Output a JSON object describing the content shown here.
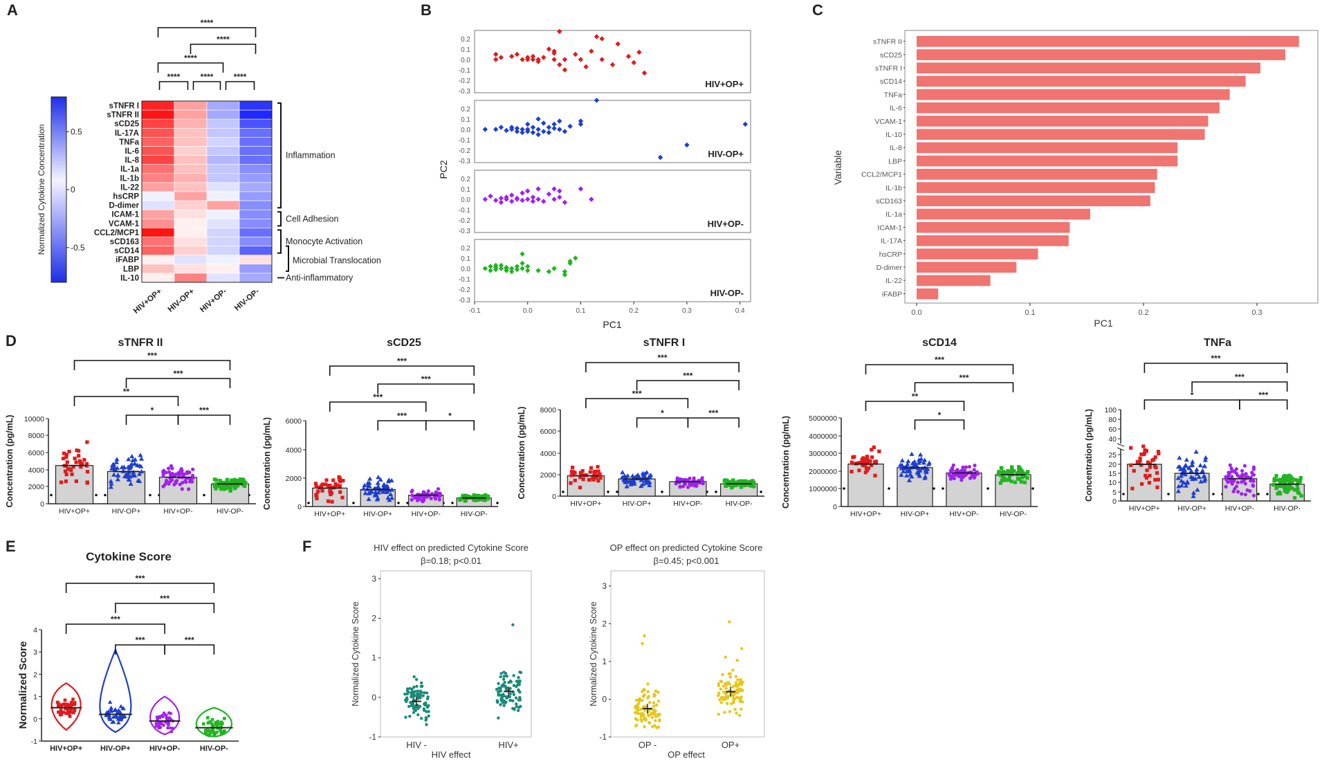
{
  "colors": {
    "hiv_pos_op_pos": "#e31a1c",
    "hiv_neg_op_pos": "#1f3fd0",
    "hiv_pos_op_neg": "#a020f0",
    "hiv_neg_op_neg": "#22b422",
    "bar": "#f07470",
    "teal": "#1a8a7a",
    "gold": "#e6c619",
    "heat_pos": "#e8211d",
    "heat_neg": "#1e2ee8"
  },
  "chart_data": [
    {
      "panel": "A",
      "type": "heatmap",
      "colorbar_label": "Normalized Cytokine Concentration",
      "colorbar_ticks": [
        "0.5",
        "0",
        "-0.5"
      ],
      "columns": [
        "HIV+OP+",
        "HIV-OP+",
        "HIV+OP-",
        "HIV-OP-"
      ],
      "rows": [
        "sTNFR I",
        "sTNFR II",
        "sCD25",
        "IL-17A",
        "TNFa",
        "IL-6",
        "IL-8",
        "IL-1a",
        "IL-1b",
        "IL-22",
        "hsCRP",
        "D-dimer",
        "ICAM-1",
        "VCAM-1",
        "CCL2/MCP1",
        "sCD163",
        "sCD14",
        "iFABP",
        "LBP",
        "IL-10"
      ],
      "values": [
        [
          0.7,
          0.3,
          -0.3,
          -0.7
        ],
        [
          0.75,
          0.3,
          -0.3,
          -0.75
        ],
        [
          0.6,
          0.25,
          -0.2,
          -0.6
        ],
        [
          0.55,
          0.2,
          -0.2,
          -0.5
        ],
        [
          0.5,
          0.2,
          -0.15,
          -0.5
        ],
        [
          0.55,
          0.15,
          -0.2,
          -0.5
        ],
        [
          0.6,
          0.2,
          -0.25,
          -0.5
        ],
        [
          0.45,
          0.2,
          -0.2,
          -0.4
        ],
        [
          0.4,
          0.25,
          -0.2,
          -0.35
        ],
        [
          0.3,
          0.2,
          -0.1,
          -0.3
        ],
        [
          -0.05,
          0.3,
          -0.05,
          -0.35
        ],
        [
          -0.1,
          0.15,
          0.3,
          -0.4
        ],
        [
          0.3,
          0.1,
          -0.05,
          -0.4
        ],
        [
          0.35,
          0.05,
          -0.1,
          -0.4
        ],
        [
          0.75,
          0.05,
          -0.15,
          -0.5
        ],
        [
          0.45,
          0.1,
          -0.15,
          -0.4
        ],
        [
          0.5,
          0.15,
          -0.15,
          -0.55
        ],
        [
          0.05,
          -0.1,
          -0.05,
          0.1
        ],
        [
          0.2,
          0.1,
          0.05,
          -0.35
        ],
        [
          0.05,
          0.4,
          -0.1,
          -0.3
        ]
      ],
      "groups": [
        "Inflammation",
        "Cell Adhesion",
        "Monocyte Activation",
        "Microbial Translocation",
        "Anti-inflammatory"
      ],
      "significance": [
        "****",
        "****",
        "****",
        "****",
        "****",
        "****"
      ]
    },
    {
      "panel": "B",
      "type": "scatter",
      "xlabel": "PC1",
      "ylabel": "PC2",
      "xticks": [
        "-0.1",
        "0.0",
        "0.1",
        "0.2",
        "0.3",
        "0.4"
      ],
      "yticks": [
        "0.2",
        "0.1",
        "0.0",
        "-0.1",
        "-0.2",
        "-0.3"
      ],
      "xlim": [
        -0.1,
        0.42
      ],
      "ylim": [
        -0.32,
        0.28
      ],
      "facets": [
        {
          "name": "HIV+OP+",
          "points": [
            [
              -0.06,
              0.05
            ],
            [
              -0.06,
              0.0
            ],
            [
              -0.05,
              0.02
            ],
            [
              -0.02,
              0.05
            ],
            [
              -0.01,
              0.0
            ],
            [
              0.0,
              0.02
            ],
            [
              0.0,
              0.0
            ],
            [
              0.01,
              0.03
            ],
            [
              0.01,
              0.0
            ],
            [
              0.02,
              -0.02
            ],
            [
              0.02,
              0.0
            ],
            [
              0.03,
              0.02
            ],
            [
              0.04,
              0.1
            ],
            [
              0.05,
              0.0
            ],
            [
              0.05,
              0.06
            ],
            [
              0.06,
              -0.05
            ],
            [
              0.06,
              0.27
            ],
            [
              0.07,
              -0.1
            ],
            [
              0.07,
              0.0
            ],
            [
              0.09,
              0.05
            ],
            [
              0.1,
              0.0
            ],
            [
              0.11,
              -0.07
            ],
            [
              0.12,
              0.08
            ],
            [
              0.13,
              0.22
            ],
            [
              0.14,
              0.2
            ],
            [
              0.14,
              0.0
            ],
            [
              0.16,
              -0.05
            ],
            [
              0.17,
              0.15
            ],
            [
              0.19,
              0.03
            ],
            [
              0.2,
              -0.03
            ],
            [
              0.21,
              0.07
            ],
            [
              0.22,
              -0.13
            ],
            [
              0.05,
              0.08
            ],
            [
              -0.03,
              0.03
            ]
          ]
        },
        {
          "name": "HIV-OP+",
          "points": [
            [
              -0.08,
              0.0
            ],
            [
              -0.06,
              0.0
            ],
            [
              -0.05,
              0.02
            ],
            [
              -0.04,
              -0.01
            ],
            [
              -0.03,
              0.0
            ],
            [
              -0.03,
              0.02
            ],
            [
              -0.02,
              -0.02
            ],
            [
              -0.02,
              0.01
            ],
            [
              -0.01,
              0.0
            ],
            [
              -0.01,
              -0.03
            ],
            [
              0.0,
              0.05
            ],
            [
              0.0,
              0.0
            ],
            [
              0.0,
              -0.02
            ],
            [
              0.01,
              0.02
            ],
            [
              0.01,
              -0.03
            ],
            [
              0.02,
              0.1
            ],
            [
              0.02,
              0.0
            ],
            [
              0.02,
              -0.05
            ],
            [
              0.03,
              0.06
            ],
            [
              0.03,
              -0.02
            ],
            [
              0.04,
              0.02
            ],
            [
              0.04,
              -0.03
            ],
            [
              0.05,
              0.05
            ],
            [
              0.05,
              0.01
            ],
            [
              0.06,
              0.08
            ],
            [
              0.06,
              0.0
            ],
            [
              0.07,
              -0.02
            ],
            [
              0.08,
              0.03
            ],
            [
              0.1,
              0.05
            ],
            [
              0.1,
              0.08
            ],
            [
              0.13,
              0.28
            ],
            [
              0.3,
              -0.15
            ],
            [
              0.41,
              0.05
            ],
            [
              0.25,
              -0.27
            ]
          ]
        },
        {
          "name": "HIV+OP-",
          "points": [
            [
              -0.08,
              0.0
            ],
            [
              -0.07,
              0.03
            ],
            [
              -0.06,
              -0.01
            ],
            [
              -0.05,
              0.01
            ],
            [
              -0.05,
              -0.03
            ],
            [
              -0.04,
              0.02
            ],
            [
              -0.04,
              0.0
            ],
            [
              -0.03,
              -0.02
            ],
            [
              -0.03,
              0.04
            ],
            [
              -0.02,
              0.0
            ],
            [
              -0.02,
              0.01
            ],
            [
              -0.01,
              -0.01
            ],
            [
              0.0,
              0.0
            ],
            [
              0.0,
              0.08
            ],
            [
              0.01,
              0.02
            ],
            [
              0.01,
              -0.02
            ],
            [
              0.02,
              0.1
            ],
            [
              0.02,
              0.0
            ],
            [
              0.03,
              -0.02
            ],
            [
              0.04,
              0.05
            ],
            [
              0.05,
              0.1
            ],
            [
              0.05,
              0.0
            ],
            [
              0.06,
              0.02
            ],
            [
              0.06,
              0.08
            ],
            [
              0.07,
              -0.03
            ],
            [
              0.1,
              0.1
            ],
            [
              0.12,
              0.0
            ],
            [
              -0.01,
              0.06
            ]
          ]
        },
        {
          "name": "HIV-OP-",
          "points": [
            [
              -0.08,
              0.0
            ],
            [
              -0.07,
              0.02
            ],
            [
              -0.07,
              -0.02
            ],
            [
              -0.06,
              0.01
            ],
            [
              -0.06,
              -0.01
            ],
            [
              -0.05,
              0.0
            ],
            [
              -0.05,
              0.03
            ],
            [
              -0.04,
              -0.02
            ],
            [
              -0.04,
              0.01
            ],
            [
              -0.03,
              0.0
            ],
            [
              -0.03,
              -0.03
            ],
            [
              -0.02,
              0.02
            ],
            [
              -0.02,
              -0.01
            ],
            [
              -0.01,
              0.0
            ],
            [
              -0.01,
              0.05
            ],
            [
              0.0,
              -0.02
            ],
            [
              0.0,
              0.02
            ],
            [
              -0.01,
              0.14
            ],
            [
              0.02,
              -0.02
            ],
            [
              0.04,
              -0.03
            ],
            [
              0.05,
              0.0
            ],
            [
              0.07,
              -0.06
            ],
            [
              0.08,
              0.05
            ],
            [
              0.08,
              0.07
            ],
            [
              0.09,
              0.1
            ],
            [
              0.07,
              -0.03
            ],
            [
              -0.04,
              0.0
            ],
            [
              -0.06,
              0.03
            ]
          ]
        }
      ]
    },
    {
      "panel": "C",
      "type": "bar",
      "orientation": "horizontal",
      "xlabel": "PC1",
      "ylabel": "Variable",
      "xticks": [
        "0.0",
        "0.1",
        "0.2",
        "0.3"
      ],
      "xlim": [
        0,
        0.35
      ],
      "categories": [
        "sTNFR II",
        "sCD25",
        "sTNFR I",
        "sCD14",
        "TNFa",
        "IL-6",
        "VCAM-1",
        "IL-10",
        "IL-8",
        "LBP",
        "CCL2/MCP1",
        "IL-1b",
        "sCD163",
        "IL-1a",
        "ICAM-1",
        "IL-17A",
        "hsCRP",
        "D-dimer",
        "IL-22",
        "iFABP"
      ],
      "values": [
        0.337,
        0.325,
        0.303,
        0.29,
        0.276,
        0.267,
        0.257,
        0.254,
        0.23,
        0.23,
        0.212,
        0.21,
        0.206,
        0.153,
        0.135,
        0.134,
        0.107,
        0.088,
        0.065,
        0.019
      ]
    },
    {
      "panel": "D",
      "title": "sTNFR II",
      "type": "bar",
      "ylabel": "Concentration (pg/mL)",
      "categories": [
        "HIV+OP+",
        "HIV-OP+",
        "HIV+OP-",
        "HIV-OP-"
      ],
      "values": [
        4500,
        3800,
        3100,
        2300
      ],
      "ylim": [
        0,
        10000
      ],
      "yticks": [
        "10000",
        "8000",
        "6000",
        "4000",
        "2000",
        "0"
      ],
      "significance": [
        "***",
        "***",
        "**",
        "*",
        "***"
      ]
    },
    {
      "panel": "D",
      "title": "sCD25",
      "type": "bar",
      "ylabel": "Concentration (pg/mL)",
      "categories": [
        "HIV+OP+",
        "HIV-OP+",
        "HIV+OP-",
        "HIV-OP-"
      ],
      "values": [
        1300,
        1200,
        800,
        600
      ],
      "ylim": [
        0,
        6000
      ],
      "yticks": [
        "6000",
        "4000",
        "2000",
        "0"
      ],
      "significance": [
        "***",
        "***",
        "***",
        "***",
        "*"
      ]
    },
    {
      "panel": "D",
      "title": "sTNFR I",
      "type": "bar",
      "ylabel": "Concentration (pg/mL)",
      "categories": [
        "HIV+OP+",
        "HIV-OP+",
        "HIV+OP-",
        "HIV-OP-"
      ],
      "values": [
        1900,
        1600,
        1350,
        1150
      ],
      "ylim": [
        0,
        8000
      ],
      "yticks": [
        "8000",
        "6000",
        "4000",
        "2000",
        "0"
      ],
      "significance": [
        "***",
        "***",
        "***",
        "*",
        "***"
      ]
    },
    {
      "panel": "D",
      "title": "sCD14",
      "type": "bar",
      "ylabel": "Concentration (pg/mL)",
      "categories": [
        "HIV+OP+",
        "HIV-OP+",
        "HIV+OP-",
        "HIV-OP-"
      ],
      "values": [
        2400000,
        2200000,
        1900000,
        1800000
      ],
      "ylim": [
        0,
        5000000
      ],
      "yticks": [
        "5000000",
        "4000000",
        "3000000",
        "2000000",
        "1000000",
        "0"
      ],
      "significance": [
        "***",
        "***",
        "**",
        "*"
      ]
    },
    {
      "panel": "D",
      "title": "TNFa",
      "type": "bar",
      "ylabel": "Concentration (pg/mL)",
      "categories": [
        "HIV+OP+",
        "HIV-OP+",
        "HIV+OP-",
        "HIV-OP-"
      ],
      "values": [
        20,
        15,
        12,
        9
      ],
      "ylim": [
        0,
        100
      ],
      "yticks": [
        "100",
        "80",
        "60",
        "40",
        "25",
        "20",
        "15",
        "10",
        "5",
        "0"
      ],
      "significance": [
        "***",
        "***",
        "*",
        "***"
      ]
    },
    {
      "panel": "E",
      "title": "Cytokine Score",
      "type": "violin",
      "ylabel": "Normalized Score",
      "categories": [
        "HIV+OP+",
        "HIV-OP+",
        "HIV+OP-",
        "HIV-OP-"
      ],
      "medians": [
        0.5,
        0.2,
        -0.1,
        -0.4
      ],
      "ylim": [
        -1,
        4
      ],
      "yticks": [
        "4",
        "3",
        "2",
        "1",
        "0",
        "-1"
      ],
      "significance": [
        "***",
        "***",
        "***",
        "***",
        "***"
      ]
    },
    {
      "panel": "F",
      "title": "HIV effect on predicted Cytokine Score",
      "subtitle": "β=0.18; p<0.01",
      "type": "scatter",
      "xlabel": "HIV effect",
      "ylabel": "Normalized Cytokine Score",
      "categories": [
        "HIV -",
        "HIV+"
      ],
      "means": [
        -0.1,
        0.15
      ],
      "ylim": [
        -1,
        3.2
      ],
      "yticks": [
        "3",
        "2",
        "1",
        "0",
        "-1"
      ]
    },
    {
      "panel": "F",
      "title": "OP effect on predicted Cytokine Score",
      "subtitle": "β=0.45; p<0.001",
      "type": "scatter",
      "xlabel": "OP effect",
      "ylabel": "Normalized Cytokine Score",
      "categories": [
        "OP -",
        "OP+"
      ],
      "means": [
        -0.25,
        0.2
      ],
      "ylim": [
        -1,
        3.4
      ],
      "yticks": [
        "3",
        "2",
        "1",
        "0",
        "-1"
      ]
    }
  ]
}
